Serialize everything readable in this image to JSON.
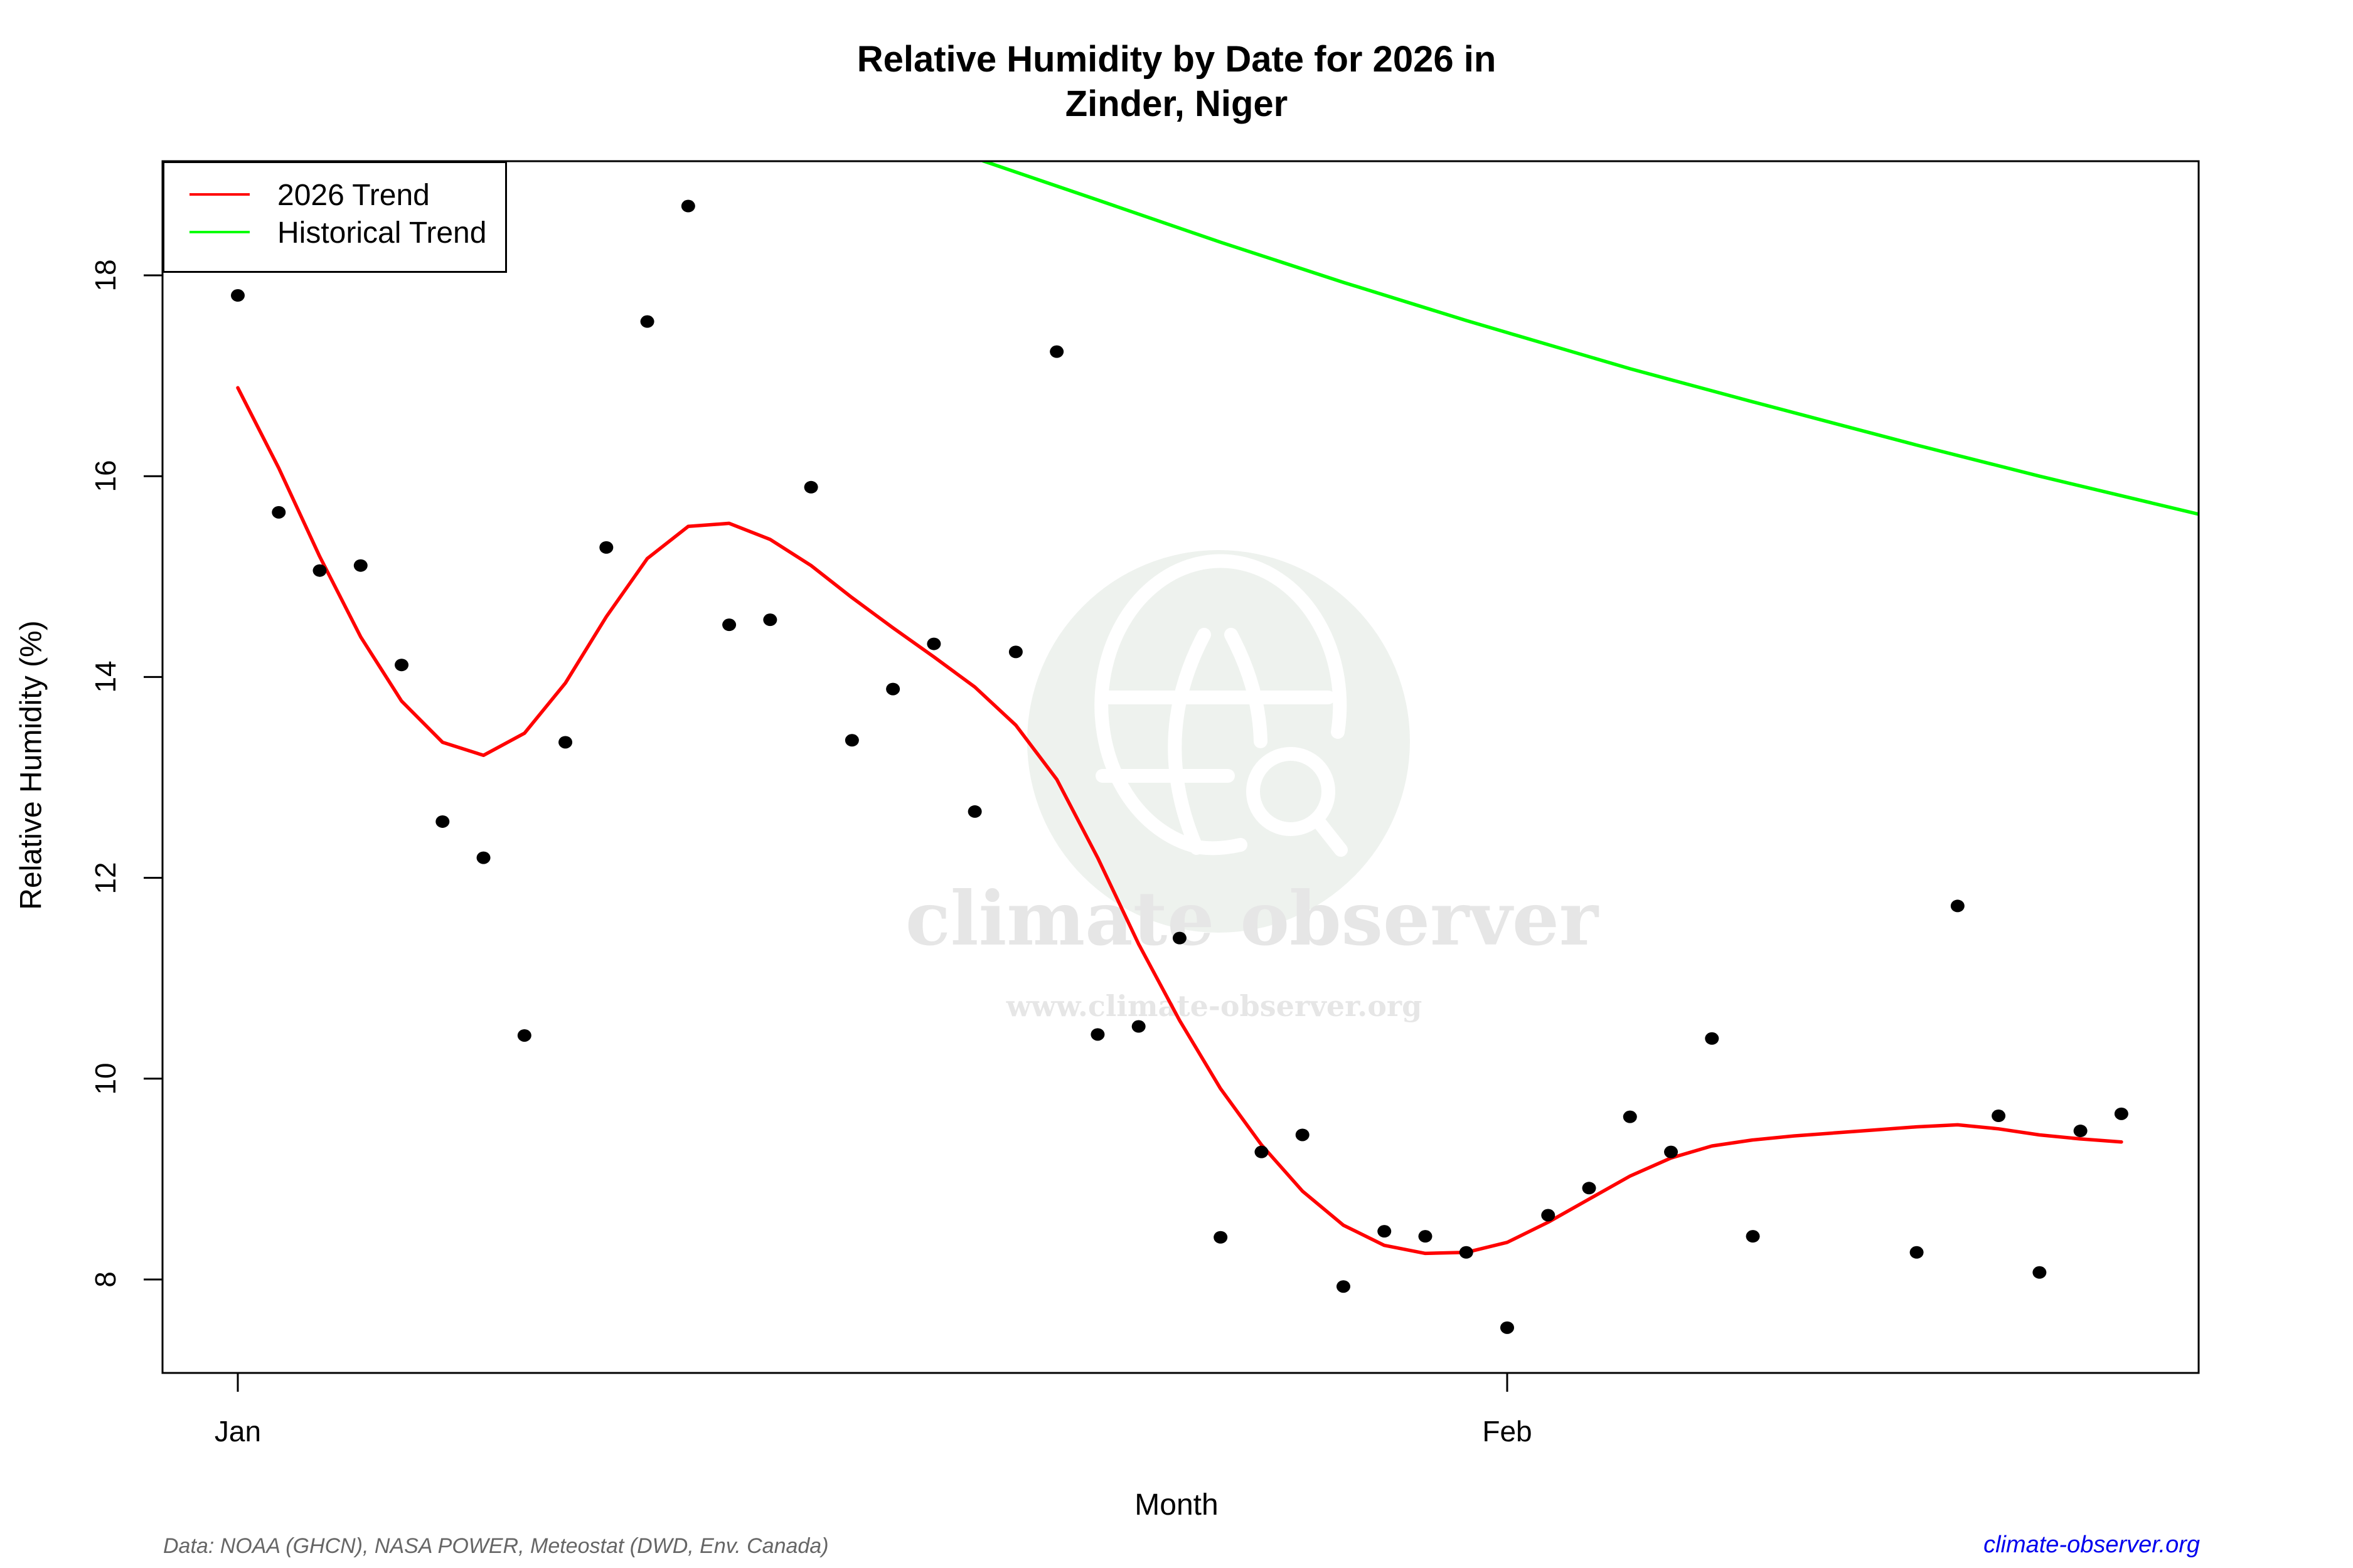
{
  "chart_data": {
    "type": "scatter",
    "title": "Relative Humidity by Date for 2026 in",
    "subtitle": "Zinder, Niger",
    "xlabel": "Month",
    "ylabel": "Relative Humidity (%)",
    "ylim": [
      7.07,
      19.14
    ],
    "yticks": [
      8,
      10,
      12,
      14,
      16,
      18
    ],
    "xticks": [
      {
        "label": "Jan",
        "day": 1
      },
      {
        "label": "Feb",
        "day": 32
      }
    ],
    "xlim_days": [
      -0.8,
      49
    ],
    "grid": false,
    "legend_position": "top-left",
    "legend": [
      {
        "label": "2026 Trend",
        "color": "#ff0000"
      },
      {
        "label": "Historical Trend",
        "color": "#00ff00"
      }
    ],
    "points": {
      "name": "Daily observations",
      "days": [
        1,
        2,
        3,
        4,
        5,
        6,
        7,
        8,
        9,
        10,
        11,
        12,
        13,
        14,
        15,
        16,
        17,
        18,
        19,
        20,
        21,
        22,
        23,
        24,
        25,
        26,
        27,
        28,
        29,
        30,
        31,
        32,
        33,
        34,
        35,
        36,
        37,
        38,
        42,
        43,
        44,
        45,
        46,
        47
      ],
      "values": [
        17.8,
        15.64,
        15.06,
        15.11,
        14.12,
        12.56,
        12.2,
        10.43,
        13.35,
        15.29,
        17.54,
        18.69,
        14.52,
        14.57,
        15.89,
        13.37,
        13.88,
        14.33,
        12.66,
        14.25,
        17.24,
        10.44,
        10.52,
        11.4,
        8.42,
        9.27,
        9.44,
        7.93,
        8.48,
        8.43,
        8.27,
        7.52,
        8.64,
        8.91,
        9.62,
        9.27,
        10.4,
        8.43,
        8.27,
        11.72,
        9.63,
        8.07,
        9.48,
        9.65
      ]
    },
    "series": [
      {
        "name": "2026 Trend",
        "color": "#ff0000",
        "days": [
          1,
          2,
          3,
          4,
          5,
          6,
          7,
          8,
          9,
          10,
          11,
          12,
          13,
          14,
          15,
          16,
          17,
          18,
          19,
          20,
          21,
          22,
          23,
          24,
          25,
          26,
          27,
          28,
          29,
          30,
          31,
          32,
          33,
          34,
          35,
          36,
          37,
          38,
          39,
          40,
          41,
          42,
          43,
          44,
          45,
          46,
          47
        ],
        "values": [
          16.88,
          16.08,
          15.2,
          14.4,
          13.76,
          13.35,
          13.22,
          13.44,
          13.94,
          14.6,
          15.18,
          15.5,
          15.53,
          15.37,
          15.11,
          14.79,
          14.49,
          14.2,
          13.9,
          13.52,
          12.98,
          12.2,
          11.34,
          10.58,
          9.9,
          9.34,
          8.88,
          8.54,
          8.34,
          8.26,
          8.27,
          8.37,
          8.57,
          8.8,
          9.03,
          9.21,
          9.33,
          9.39,
          9.43,
          9.46,
          9.49,
          9.52,
          9.54,
          9.5,
          9.44,
          9.4,
          9.37
        ]
      },
      {
        "name": "Historical Trend",
        "color": "#00ff00",
        "days": [
          19.2,
          22,
          25,
          28,
          31,
          32,
          35,
          38,
          42,
          45,
          49
        ],
        "values": [
          19.14,
          18.75,
          18.33,
          17.93,
          17.55,
          17.43,
          17.07,
          16.74,
          16.31,
          16.0,
          15.61
        ]
      }
    ],
    "annotations": [
      "climate observer",
      "www.climate-observer.org"
    ]
  },
  "footer": {
    "source": "Data: NOAA (GHCN), NASA POWER, Meteostat (DWD, Env. Canada)",
    "link": "climate-observer.org"
  },
  "watermark": {
    "name": "climate observer",
    "url": "www.climate-observer.org"
  }
}
